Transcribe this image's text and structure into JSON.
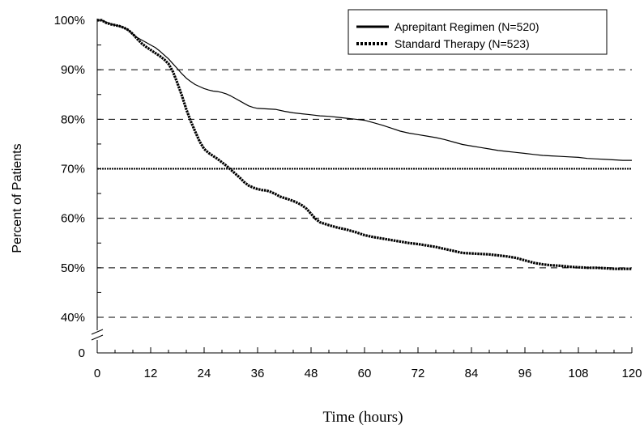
{
  "chart_data": {
    "type": "line",
    "xlabel": "Time (hours)",
    "ylabel": "Percent of Patients",
    "x_ticks": [
      "0",
      "12",
      "24",
      "36",
      "48",
      "60",
      "72",
      "84",
      "96",
      "108",
      "120"
    ],
    "y_ticks": [
      "40%",
      "50%",
      "60%",
      "70%",
      "80%",
      "90%",
      "100%"
    ],
    "y_zero_tick": "0",
    "xlim": [
      0,
      120
    ],
    "ylim": [
      40,
      100
    ],
    "axis_break": true,
    "grid": "dashed horizontal",
    "reference_line": 70,
    "legend_position": "top-right",
    "series": [
      {
        "name": "Aprepitant Regimen (N=520)",
        "style": "solid",
        "points": [
          [
            0,
            100
          ],
          [
            1,
            100
          ],
          [
            2,
            99.6
          ],
          [
            3,
            99.3
          ],
          [
            4,
            99
          ],
          [
            5,
            98.8
          ],
          [
            6,
            98.5
          ],
          [
            7,
            98
          ],
          [
            8,
            97.2
          ],
          [
            9,
            96.5
          ],
          [
            10,
            96
          ],
          [
            11,
            95.5
          ],
          [
            12,
            95
          ],
          [
            13,
            94.5
          ],
          [
            14,
            93.8
          ],
          [
            15,
            93
          ],
          [
            16,
            92.2
          ],
          [
            17,
            91.2
          ],
          [
            18,
            90.2
          ],
          [
            19,
            89.2
          ],
          [
            20,
            88.3
          ],
          [
            21,
            87.6
          ],
          [
            22,
            87
          ],
          [
            23,
            86.6
          ],
          [
            24,
            86.2
          ],
          [
            25,
            85.9
          ],
          [
            26,
            85.7
          ],
          [
            27,
            85.6
          ],
          [
            28,
            85.4
          ],
          [
            29,
            85.1
          ],
          [
            30,
            84.7
          ],
          [
            31,
            84.2
          ],
          [
            32,
            83.7
          ],
          [
            33,
            83.2
          ],
          [
            34,
            82.7
          ],
          [
            35,
            82.4
          ],
          [
            36,
            82.2
          ],
          [
            38,
            82.1
          ],
          [
            40,
            82
          ],
          [
            42,
            81.6
          ],
          [
            44,
            81.3
          ],
          [
            46,
            81.1
          ],
          [
            48,
            80.9
          ],
          [
            50,
            80.7
          ],
          [
            52,
            80.6
          ],
          [
            54,
            80.4
          ],
          [
            56,
            80.2
          ],
          [
            58,
            80
          ],
          [
            60,
            79.8
          ],
          [
            62,
            79.3
          ],
          [
            64,
            78.8
          ],
          [
            66,
            78.2
          ],
          [
            68,
            77.6
          ],
          [
            70,
            77.2
          ],
          [
            72,
            76.9
          ],
          [
            74,
            76.6
          ],
          [
            76,
            76.3
          ],
          [
            78,
            75.9
          ],
          [
            80,
            75.4
          ],
          [
            82,
            74.9
          ],
          [
            84,
            74.6
          ],
          [
            86,
            74.3
          ],
          [
            88,
            74
          ],
          [
            90,
            73.7
          ],
          [
            92,
            73.5
          ],
          [
            94,
            73.3
          ],
          [
            96,
            73.1
          ],
          [
            98,
            72.9
          ],
          [
            100,
            72.7
          ],
          [
            102,
            72.6
          ],
          [
            104,
            72.5
          ],
          [
            106,
            72.4
          ],
          [
            108,
            72.3
          ],
          [
            110,
            72.1
          ],
          [
            112,
            72
          ],
          [
            114,
            71.9
          ],
          [
            116,
            71.8
          ],
          [
            118,
            71.7
          ],
          [
            120,
            71.7
          ]
        ]
      },
      {
        "name": "Standard Therapy (N=523)",
        "style": "dotted",
        "points": [
          [
            0,
            100
          ],
          [
            1,
            100
          ],
          [
            2,
            99.5
          ],
          [
            3,
            99.2
          ],
          [
            4,
            99
          ],
          [
            5,
            98.8
          ],
          [
            6,
            98.5
          ],
          [
            7,
            98
          ],
          [
            8,
            97.2
          ],
          [
            9,
            96.2
          ],
          [
            10,
            95.3
          ],
          [
            11,
            94.6
          ],
          [
            12,
            94
          ],
          [
            13,
            93.4
          ],
          [
            14,
            92.8
          ],
          [
            15,
            92.1
          ],
          [
            16,
            91.2
          ],
          [
            17,
            89.6
          ],
          [
            18,
            87.3
          ],
          [
            19,
            84.8
          ],
          [
            20,
            82
          ],
          [
            21,
            79.6
          ],
          [
            22,
            77.5
          ],
          [
            23,
            75.5
          ],
          [
            24,
            74
          ],
          [
            25,
            73.2
          ],
          [
            26,
            72.6
          ],
          [
            27,
            72
          ],
          [
            28,
            71.3
          ],
          [
            29,
            70.6
          ],
          [
            30,
            69.8
          ],
          [
            31,
            69
          ],
          [
            32,
            68.2
          ],
          [
            33,
            67.3
          ],
          [
            34,
            66.6
          ],
          [
            35,
            66.2
          ],
          [
            36,
            65.9
          ],
          [
            37,
            65.7
          ],
          [
            38,
            65.6
          ],
          [
            39,
            65.3
          ],
          [
            40,
            64.9
          ],
          [
            41,
            64.4
          ],
          [
            42,
            64.1
          ],
          [
            43,
            63.8
          ],
          [
            44,
            63.5
          ],
          [
            45,
            63.1
          ],
          [
            46,
            62.6
          ],
          [
            47,
            61.9
          ],
          [
            48,
            60.9
          ],
          [
            49,
            59.9
          ],
          [
            50,
            59.2
          ],
          [
            52,
            58.6
          ],
          [
            54,
            58.1
          ],
          [
            56,
            57.7
          ],
          [
            58,
            57.2
          ],
          [
            60,
            56.6
          ],
          [
            62,
            56.2
          ],
          [
            64,
            55.9
          ],
          [
            66,
            55.6
          ],
          [
            68,
            55.3
          ],
          [
            70,
            55
          ],
          [
            72,
            54.8
          ],
          [
            74,
            54.5
          ],
          [
            76,
            54.2
          ],
          [
            78,
            53.8
          ],
          [
            80,
            53.4
          ],
          [
            82,
            53
          ],
          [
            84,
            52.9
          ],
          [
            86,
            52.8
          ],
          [
            88,
            52.7
          ],
          [
            90,
            52.5
          ],
          [
            92,
            52.3
          ],
          [
            94,
            52
          ],
          [
            96,
            51.5
          ],
          [
            98,
            51
          ],
          [
            100,
            50.7
          ],
          [
            102,
            50.5
          ],
          [
            104,
            50.4
          ],
          [
            106,
            50.2
          ],
          [
            108,
            50.1
          ],
          [
            110,
            50
          ],
          [
            112,
            50
          ],
          [
            114,
            49.9
          ],
          [
            116,
            49.8
          ],
          [
            118,
            49.8
          ],
          [
            120,
            49.8
          ]
        ]
      }
    ]
  }
}
